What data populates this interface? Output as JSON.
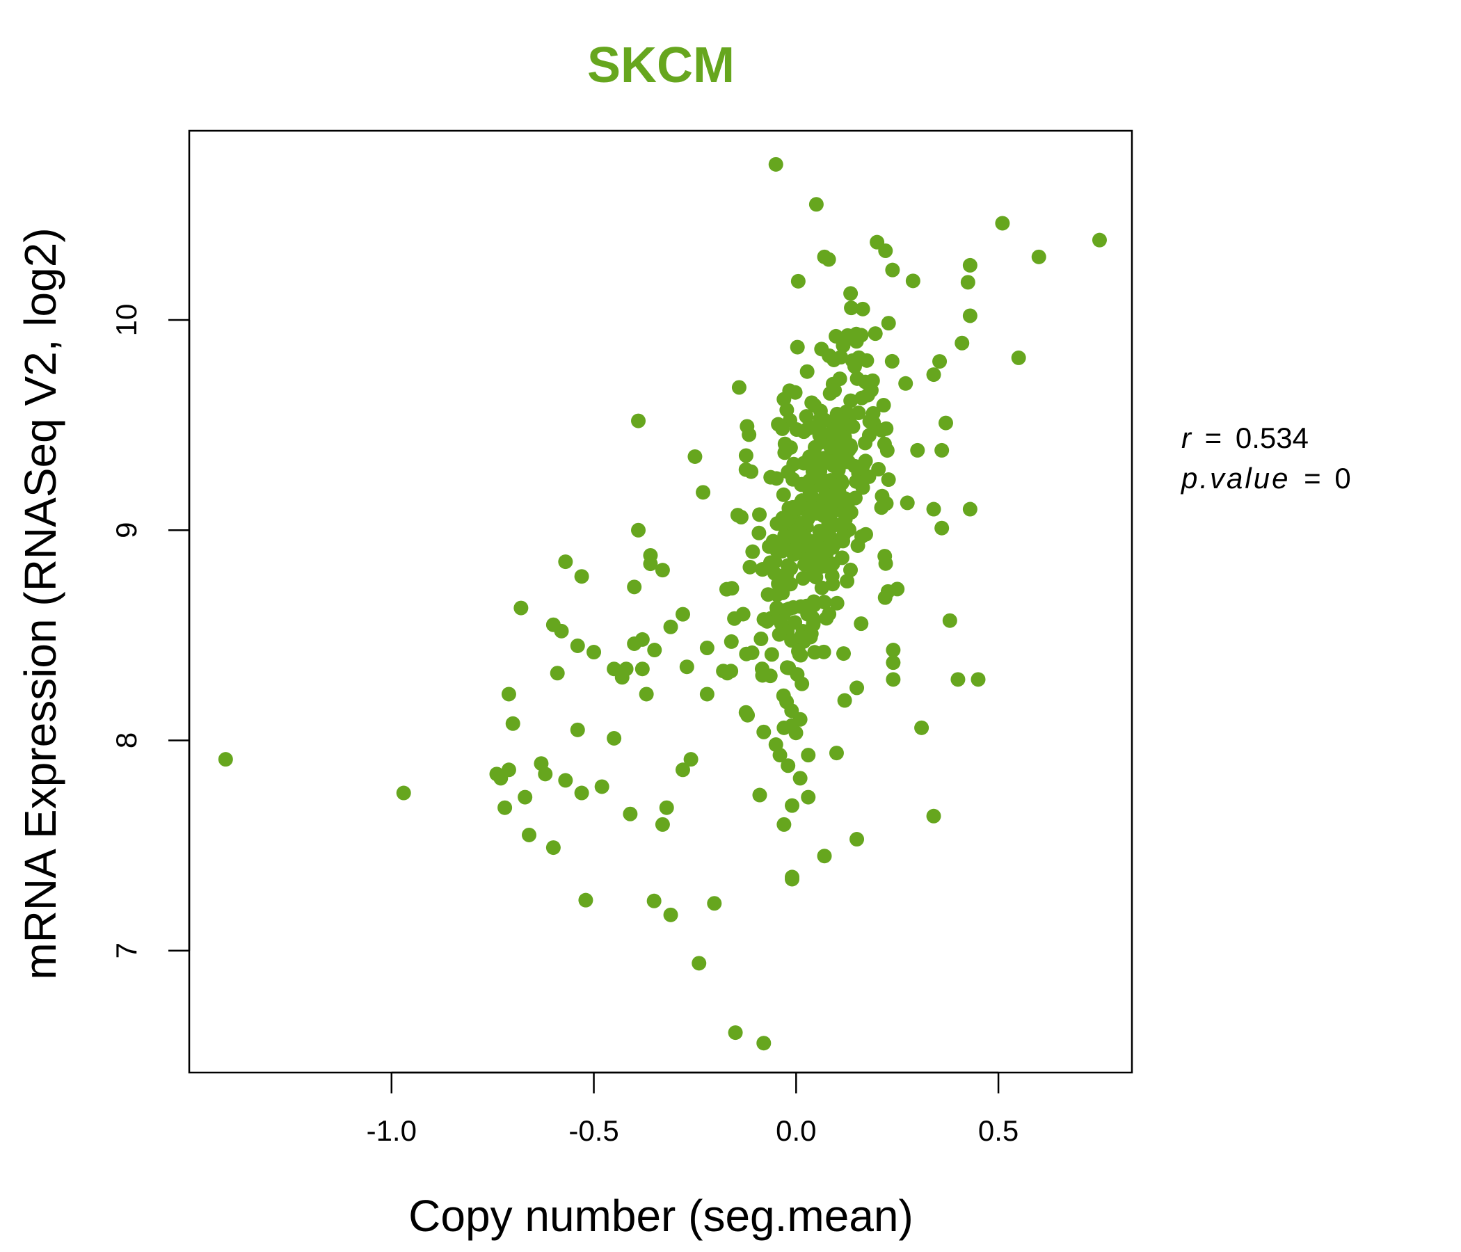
{
  "chart_data": {
    "type": "scatter",
    "title": "SKCM",
    "title_color": "#66a61e",
    "point_color": "#66a61e",
    "xlabel": "Copy number (seg.mean)",
    "ylabel": "mRNA Expression (RNASeq V2, log2)",
    "xlim": [
      -1.5,
      0.83
    ],
    "ylim": [
      6.42,
      10.9
    ],
    "x_ticks": [
      -1.0,
      -0.5,
      0.0,
      0.5
    ],
    "x_tick_labels": [
      "-1.0",
      "-0.5",
      "0.0",
      "0.5"
    ],
    "y_ticks": [
      7,
      8,
      9,
      10
    ],
    "y_tick_labels": [
      "7",
      "8",
      "9",
      "10"
    ],
    "stats": {
      "r_label": "r",
      "r_value": "0.534",
      "p_label": "p.value",
      "p_value": "0"
    },
    "outlier_points": [
      [
        -1.41,
        7.91
      ],
      [
        -0.97,
        7.75
      ],
      [
        -0.05,
        10.74
      ],
      [
        0.05,
        10.55
      ],
      [
        0.51,
        10.46
      ],
      [
        0.75,
        10.38
      ],
      [
        0.6,
        10.3
      ],
      [
        0.2,
        10.37
      ],
      [
        0.07,
        10.3
      ],
      [
        0.43,
        10.26
      ],
      [
        0.43,
        10.02
      ],
      [
        0.41,
        9.89
      ],
      [
        0.55,
        9.82
      ],
      [
        0.34,
        9.74
      ],
      [
        -0.39,
        9.52
      ],
      [
        -0.25,
        9.35
      ],
      [
        -0.23,
        9.18
      ],
      [
        -0.39,
        9.0
      ],
      [
        -0.36,
        8.88
      ],
      [
        -0.36,
        8.84
      ],
      [
        -0.33,
        8.81
      ],
      [
        -0.57,
        8.85
      ],
      [
        -0.53,
        8.78
      ],
      [
        -0.4,
        8.73
      ],
      [
        -0.68,
        8.63
      ],
      [
        -0.6,
        8.55
      ],
      [
        -0.58,
        8.52
      ],
      [
        -0.54,
        8.45
      ],
      [
        -0.5,
        8.42
      ],
      [
        -0.59,
        8.32
      ],
      [
        -0.45,
        8.34
      ],
      [
        -0.43,
        8.3
      ],
      [
        -0.42,
        8.34
      ],
      [
        -0.38,
        8.34
      ],
      [
        -0.37,
        8.22
      ],
      [
        -0.4,
        8.46
      ],
      [
        -0.38,
        8.48
      ],
      [
        -0.35,
        8.43
      ],
      [
        -0.31,
        8.54
      ],
      [
        -0.28,
        8.6
      ],
      [
        -0.71,
        8.22
      ],
      [
        -0.7,
        8.08
      ],
      [
        -0.74,
        7.84
      ],
      [
        -0.73,
        7.82
      ],
      [
        -0.71,
        7.86
      ],
      [
        -0.63,
        7.89
      ],
      [
        -0.62,
        7.84
      ],
      [
        -0.57,
        7.81
      ],
      [
        -0.53,
        7.75
      ],
      [
        -0.48,
        7.78
      ],
      [
        -0.54,
        8.05
      ],
      [
        -0.45,
        8.01
      ],
      [
        -0.72,
        7.68
      ],
      [
        -0.67,
        7.73
      ],
      [
        -0.66,
        7.55
      ],
      [
        -0.6,
        7.49
      ],
      [
        -0.41,
        7.65
      ],
      [
        -0.32,
        7.68
      ],
      [
        -0.33,
        7.6
      ],
      [
        -0.28,
        7.86
      ],
      [
        -0.26,
        7.91
      ],
      [
        -0.52,
        7.24
      ],
      [
        -0.31,
        7.17
      ],
      [
        -0.24,
        6.94
      ],
      [
        -0.15,
        6.61
      ],
      [
        -0.08,
        6.56
      ],
      [
        -0.27,
        8.35
      ],
      [
        -0.22,
        8.44
      ],
      [
        -0.18,
        8.33
      ],
      [
        -0.17,
        8.32
      ],
      [
        -0.22,
        8.22
      ],
      [
        -0.16,
        8.47
      ],
      [
        0.3,
        9.38
      ],
      [
        0.36,
        9.38
      ],
      [
        0.37,
        9.51
      ],
      [
        0.34,
        9.1
      ],
      [
        0.36,
        9.01
      ],
      [
        0.43,
        9.1
      ],
      [
        0.38,
        8.57
      ],
      [
        0.4,
        8.29
      ],
      [
        0.45,
        8.29
      ],
      [
        0.31,
        8.06
      ],
      [
        0.34,
        7.64
      ],
      [
        0.24,
        8.43
      ],
      [
        0.24,
        8.37
      ],
      [
        0.24,
        8.29
      ],
      [
        0.25,
        8.72
      ],
      [
        0.15,
        8.25
      ],
      [
        0.12,
        8.19
      ],
      [
        0.1,
        7.94
      ],
      [
        0.15,
        7.53
      ],
      [
        0.07,
        7.45
      ],
      [
        -0.01,
        7.35
      ],
      [
        -0.01,
        7.34
      ],
      [
        -0.03,
        7.6
      ],
      [
        -0.01,
        7.69
      ],
      [
        0.03,
        7.73
      ],
      [
        -0.09,
        7.74
      ],
      [
        0.01,
        7.82
      ],
      [
        0.03,
        7.93
      ],
      [
        -0.04,
        7.93
      ],
      [
        -0.05,
        7.98
      ],
      [
        -0.02,
        7.88
      ],
      [
        -0.08,
        8.04
      ],
      [
        -0.12,
        8.12
      ],
      [
        0.01,
        8.1
      ],
      [
        -0.03,
        8.06
      ]
    ],
    "cluster": {
      "count": 380,
      "x_mean": 0.055,
      "x_sd": 0.095,
      "y_mean": 9.12,
      "y_sd": 0.43,
      "correlation": 0.55,
      "seed": 7
    }
  }
}
